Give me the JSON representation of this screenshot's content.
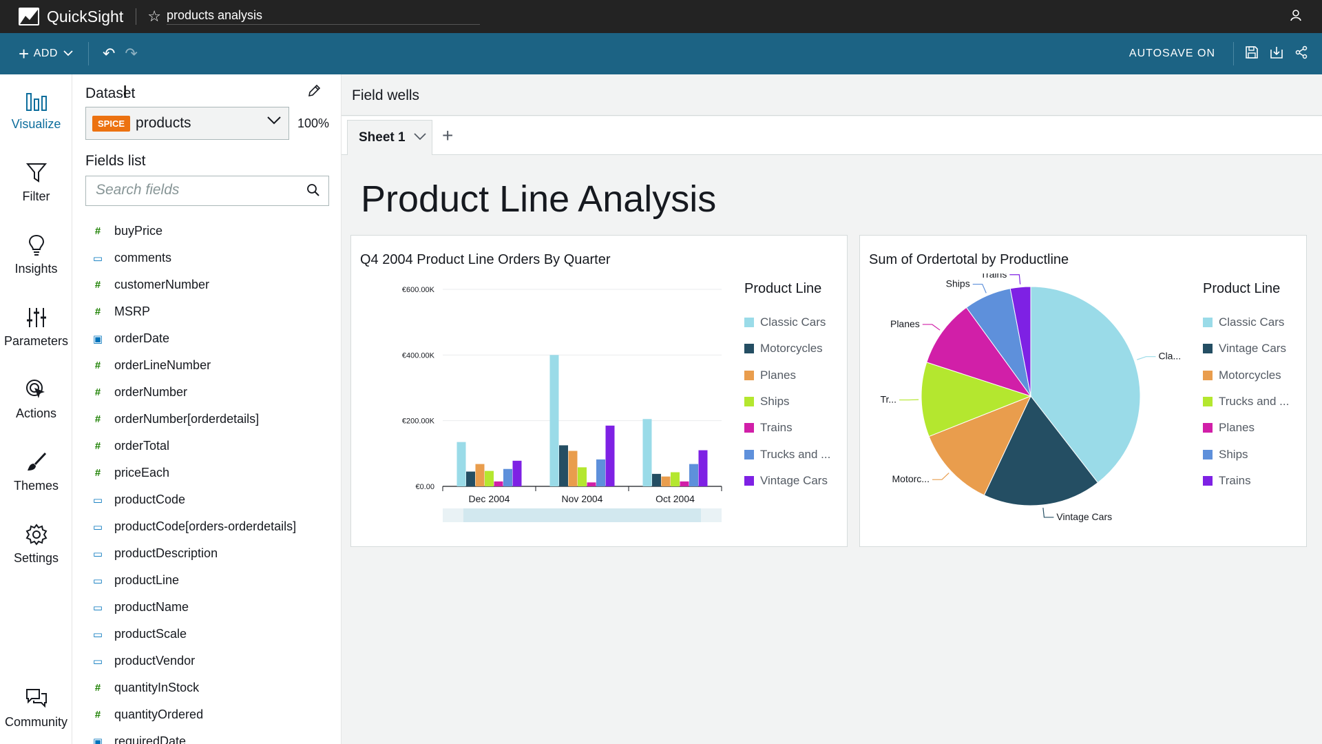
{
  "app": {
    "name": "QuickSight",
    "analysis_name": "products analysis"
  },
  "toolbar": {
    "add_label": "ADD",
    "autosave_label": "AUTOSAVE ON"
  },
  "rail": {
    "items": [
      {
        "label": "Visualize",
        "icon": "bar-chart-icon"
      },
      {
        "label": "Filter",
        "icon": "filter-icon"
      },
      {
        "label": "Insights",
        "icon": "lightbulb-icon"
      },
      {
        "label": "Parameters",
        "icon": "sliders-icon"
      },
      {
        "label": "Actions",
        "icon": "pointer-icon"
      },
      {
        "label": "Themes",
        "icon": "brush-icon"
      },
      {
        "label": "Settings",
        "icon": "gear-icon"
      },
      {
        "label": "Community",
        "icon": "chat-icon"
      }
    ]
  },
  "data_panel": {
    "dataset_label": "Dataset",
    "spice_badge": "SPICE",
    "dataset_name": "products",
    "spice_percent": "100%",
    "fields_label": "Fields list",
    "search_placeholder": "Search fields",
    "fields": [
      {
        "name": "buyPrice",
        "type": "#"
      },
      {
        "name": "comments",
        "type": "▭"
      },
      {
        "name": "customerNumber",
        "type": "#"
      },
      {
        "name": "MSRP",
        "type": "#"
      },
      {
        "name": "orderDate",
        "type": "▣"
      },
      {
        "name": "orderLineNumber",
        "type": "#"
      },
      {
        "name": "orderNumber",
        "type": "#"
      },
      {
        "name": "orderNumber[orderdetails]",
        "type": "#"
      },
      {
        "name": "orderTotal",
        "type": "#"
      },
      {
        "name": "priceEach",
        "type": "#"
      },
      {
        "name": "productCode",
        "type": "▭"
      },
      {
        "name": "productCode[orders-orderdetails]",
        "type": "▭"
      },
      {
        "name": "productDescription",
        "type": "▭"
      },
      {
        "name": "productLine",
        "type": "▭"
      },
      {
        "name": "productName",
        "type": "▭"
      },
      {
        "name": "productScale",
        "type": "▭"
      },
      {
        "name": "productVendor",
        "type": "▭"
      },
      {
        "name": "quantityInStock",
        "type": "#"
      },
      {
        "name": "quantityOrdered",
        "type": "#"
      },
      {
        "name": "requiredDate",
        "type": "▣"
      }
    ]
  },
  "main": {
    "field_wells_label": "Field wells",
    "sheet_tab": "Sheet 1",
    "sheet_title": "Product Line Analysis"
  },
  "colors": {
    "classic_cars": "#9adbe8",
    "motorcycles": "#e99d4d",
    "planes": "#d11fa8",
    "ships": "#5e90db",
    "trains": "#7e21e4",
    "trucks": "#b4e72f",
    "vintage_cars": "#244e63",
    "brand": "#1c6384",
    "spice": "#ec7211"
  },
  "chart_data": [
    {
      "type": "bar",
      "title": "Q4 2004 Product Line Orders By Quarter",
      "legend_title": "Product Line",
      "legend": [
        "Classic Cars",
        "Motorcycles",
        "Planes",
        "Ships",
        "Trains",
        "Trucks and ...",
        "Vintage Cars"
      ],
      "legend_colors": [
        "#9adbe8",
        "#244e63",
        "#e99d4d",
        "#b4e72f",
        "#d11fa8",
        "#5e90db",
        "#7e21e4"
      ],
      "categories": [
        "Dec 2004",
        "Nov 2004",
        "Oct 2004"
      ],
      "y_ticks": [
        "€0.00",
        "€200.00K",
        "€400.00K",
        "€600.00K"
      ],
      "ylim": [
        0,
        600000
      ],
      "series": [
        {
          "name": "Classic Cars",
          "color": "#9adbe8",
          "values": [
            135000,
            400000,
            205000
          ]
        },
        {
          "name": "Vintage Cars",
          "color": "#244e63",
          "values": [
            45000,
            125000,
            38000
          ]
        },
        {
          "name": "Motorcycles",
          "color": "#e99d4d",
          "values": [
            68000,
            108000,
            30000
          ]
        },
        {
          "name": "Trucks and Buses",
          "color": "#b4e72f",
          "values": [
            47000,
            58000,
            43000
          ]
        },
        {
          "name": "Planes",
          "color": "#d11fa8",
          "values": [
            15000,
            12000,
            15000
          ]
        },
        {
          "name": "Ships",
          "color": "#5e90db",
          "values": [
            53000,
            82000,
            68000
          ]
        },
        {
          "name": "Trains",
          "color": "#7e21e4",
          "values": [
            78000,
            185000,
            110000
          ]
        }
      ]
    },
    {
      "type": "pie",
      "title": "Sum of Ordertotal by Productline",
      "legend_title": "Product Line",
      "legend": [
        "Classic Cars",
        "Vintage Cars",
        "Motorcycles",
        "Trucks and ...",
        "Planes",
        "Ships",
        "Trains"
      ],
      "legend_colors": [
        "#9adbe8",
        "#244e63",
        "#e99d4d",
        "#b4e72f",
        "#d11fa8",
        "#5e90db",
        "#7e21e4"
      ],
      "slices": [
        {
          "label": "Cla...",
          "name": "Classic Cars",
          "value": 39.5,
          "color": "#9adbe8"
        },
        {
          "label": "Vintage Cars",
          "name": "Vintage Cars",
          "value": 17.5,
          "color": "#244e63"
        },
        {
          "label": "Motorc...",
          "name": "Motorcycles",
          "value": 12.0,
          "color": "#e99d4d"
        },
        {
          "label": "Tr...",
          "name": "Trucks and Buses",
          "value": 11.0,
          "color": "#b4e72f"
        },
        {
          "label": "Planes",
          "name": "Planes",
          "value": 10.0,
          "color": "#d11fa8"
        },
        {
          "label": "Ships",
          "name": "Ships",
          "value": 7.0,
          "color": "#5e90db"
        },
        {
          "label": "Trains",
          "name": "Trains",
          "value": 3.0,
          "color": "#7e21e4"
        }
      ]
    }
  ]
}
